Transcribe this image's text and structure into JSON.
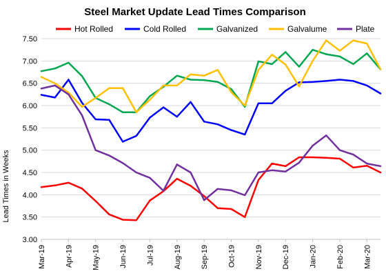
{
  "chart_data": {
    "type": "line",
    "title": "Steel Market Update Lead Times Comparison",
    "ylabel": "Lead Times in Weeks",
    "xlabel": "",
    "ylim": [
      3.0,
      7.5
    ],
    "yticks": [
      "3.00",
      "3.50",
      "4.00",
      "4.50",
      "5.00",
      "5.50",
      "6.00",
      "6.50",
      "7.00",
      "7.50"
    ],
    "grid": "horizontal",
    "legend_position": "top",
    "x_tick_labels": [
      "Mar-19",
      "Apr-19",
      "May-19",
      "Jun-19",
      "Jul-19",
      "Aug-19",
      "Sep-19",
      "Oct-19",
      "Nov-19",
      "Dec-19",
      "Jan-20",
      "Feb-20",
      "Mar-20"
    ],
    "points_per_label": 2,
    "series": [
      {
        "name": "Hot Rolled",
        "color": "#ff0000",
        "values": [
          4.17,
          4.21,
          4.27,
          4.14,
          3.86,
          3.56,
          3.44,
          3.43,
          3.87,
          4.08,
          4.36,
          4.2,
          3.97,
          3.7,
          3.68,
          3.5,
          4.33,
          4.7,
          4.64,
          4.84,
          4.84,
          4.83,
          4.81,
          4.61,
          4.65,
          4.5
        ]
      },
      {
        "name": "Cold Rolled",
        "color": "#0000ff",
        "values": [
          6.24,
          6.18,
          6.58,
          6.06,
          5.69,
          5.68,
          5.19,
          5.32,
          5.73,
          5.96,
          5.75,
          6.08,
          5.64,
          5.58,
          5.45,
          5.35,
          6.05,
          6.05,
          6.33,
          6.52,
          6.53,
          6.55,
          6.58,
          6.55,
          6.45,
          6.27
        ]
      },
      {
        "name": "Galvanized",
        "color": "#00a650",
        "values": [
          6.77,
          6.83,
          6.96,
          6.66,
          6.17,
          6.03,
          5.85,
          5.85,
          6.21,
          6.42,
          6.67,
          6.58,
          6.57,
          6.53,
          6.37,
          5.97,
          6.99,
          6.93,
          7.2,
          6.87,
          7.25,
          7.15,
          7.1,
          6.93,
          7.17,
          6.81
        ]
      },
      {
        "name": "Galvalume",
        "color": "#ffc000",
        "values": [
          6.64,
          6.5,
          6.29,
          5.97,
          6.17,
          6.39,
          6.39,
          5.85,
          6.13,
          6.45,
          6.45,
          6.7,
          6.67,
          6.8,
          6.3,
          6.0,
          6.8,
          7.14,
          6.92,
          6.43,
          7.0,
          7.46,
          7.23,
          7.46,
          7.39,
          6.81
        ]
      },
      {
        "name": "Plate",
        "color": "#7030a0",
        "values": [
          6.38,
          6.45,
          6.25,
          5.78,
          5.0,
          4.88,
          4.71,
          4.5,
          4.38,
          4.09,
          4.68,
          4.5,
          3.88,
          4.13,
          4.1,
          3.99,
          4.5,
          4.55,
          4.52,
          4.72,
          5.1,
          5.33,
          5.0,
          4.9,
          4.7,
          4.64
        ]
      }
    ]
  }
}
